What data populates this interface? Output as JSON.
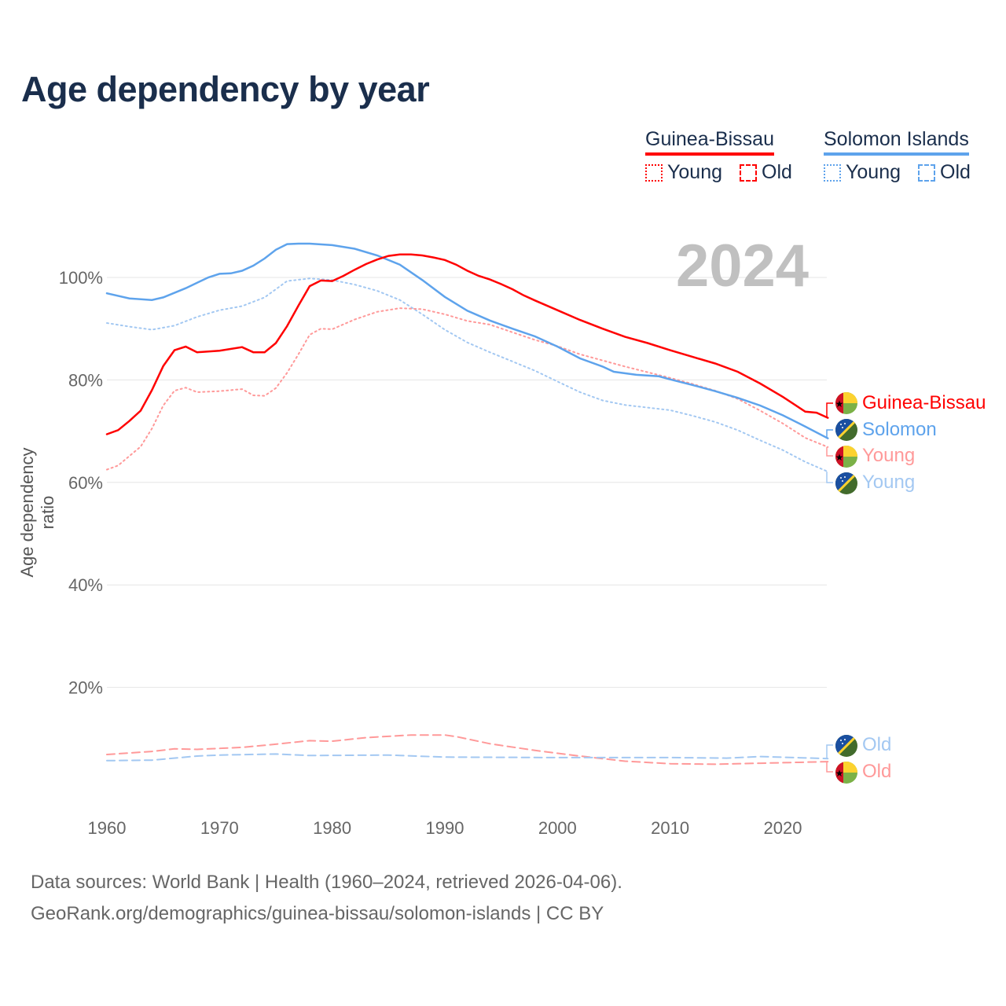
{
  "title": "Age dependency by year",
  "year_display": "2024",
  "legend": {
    "guinea_bissau": "Guinea-Bissau",
    "solomon": "Solomon Islands",
    "young": "Young",
    "old": "Old"
  },
  "end_labels": {
    "gb_total": "Guinea-Bissau",
    "sb_total": "Solomon",
    "gb_young": "Young",
    "sb_young": "Young",
    "sb_old": "Old",
    "gb_old": "Old"
  },
  "colors": {
    "gb": "#ff0000",
    "gb_light": "#ff9999",
    "sb": "#5ea3ec",
    "sb_light": "#a3c8f2"
  },
  "source": {
    "line1": "Data sources: World Bank | Health (1960–2024, retrieved 2026-04-06).",
    "line2": "GeoRank.org/demographics/guinea-bissau/solomon-islands | CC BY"
  },
  "chart_data": {
    "type": "line",
    "title": "Age dependency by year",
    "xlabel": "",
    "ylabel": "Age dependency ratio",
    "xlim": [
      1960,
      2024
    ],
    "ylim": [
      0,
      110
    ],
    "xticks": [
      1960,
      1970,
      1980,
      1990,
      2000,
      2010,
      2020
    ],
    "yticks": [
      {
        "v": 20,
        "label": "20%"
      },
      {
        "v": 40,
        "label": "40%"
      },
      {
        "v": 60,
        "label": "60%"
      },
      {
        "v": 80,
        "label": "80%"
      },
      {
        "v": 100,
        "label": "100%"
      }
    ],
    "grid": true,
    "series": [
      {
        "id": "gb_total",
        "name": "Guinea-Bissau",
        "style": "solid",
        "color": "#ff0000",
        "x": [
          1960,
          1961,
          1962,
          1963,
          1964,
          1965,
          1966,
          1967,
          1968,
          1970,
          1972,
          1973,
          1974,
          1975,
          1976,
          1977,
          1978,
          1979,
          1980,
          1981,
          1982,
          1983,
          1984,
          1985,
          1986,
          1987,
          1988,
          1989,
          1990,
          1991,
          1992,
          1993,
          1994,
          1995,
          1996,
          1997,
          1998,
          2000,
          2002,
          2004,
          2006,
          2008,
          2010,
          2012,
          2014,
          2016,
          2018,
          2020,
          2022,
          2023,
          2024
        ],
        "y": [
          69.4,
          70.2,
          72.0,
          74.0,
          78.0,
          82.7,
          85.8,
          86.5,
          85.4,
          85.7,
          86.4,
          85.4,
          85.4,
          87.2,
          90.5,
          94.5,
          98.3,
          99.4,
          99.3,
          100.3,
          101.5,
          102.6,
          103.5,
          104.2,
          104.5,
          104.5,
          104.3,
          103.9,
          103.4,
          102.5,
          101.3,
          100.3,
          99.6,
          98.7,
          97.7,
          96.5,
          95.5,
          93.6,
          91.7,
          90.0,
          88.4,
          87.2,
          85.8,
          84.5,
          83.2,
          81.6,
          79.3,
          76.7,
          73.8,
          73.6,
          72.6
        ]
      },
      {
        "id": "gb_young",
        "name": "Guinea-Bissau Young",
        "style": "dotted",
        "color": "#ff9999",
        "x": [
          1960,
          1961,
          1963,
          1964,
          1965,
          1966,
          1967,
          1968,
          1970,
          1972,
          1973,
          1974,
          1975,
          1976,
          1977,
          1978,
          1979,
          1980,
          1982,
          1984,
          1986,
          1988,
          1990,
          1992,
          1994,
          1996,
          1998,
          2000,
          2002,
          2004,
          2006,
          2008,
          2010,
          2012,
          2014,
          2016,
          2018,
          2020,
          2022,
          2024
        ],
        "y": [
          62.5,
          63.3,
          67.0,
          70.5,
          75.0,
          77.9,
          78.5,
          77.6,
          77.8,
          78.2,
          77.0,
          76.9,
          78.4,
          81.4,
          85.0,
          88.8,
          90.0,
          89.9,
          91.8,
          93.3,
          94.0,
          93.8,
          92.8,
          91.5,
          90.8,
          89.3,
          87.8,
          86.6,
          85.0,
          83.8,
          82.6,
          81.5,
          80.4,
          79.2,
          77.9,
          76.3,
          74.0,
          71.5,
          68.7,
          66.9
        ]
      },
      {
        "id": "gb_old",
        "name": "Guinea-Bissau Old",
        "style": "dashed",
        "color": "#ff9999",
        "x": [
          1960,
          1964,
          1966,
          1968,
          1972,
          1974,
          1978,
          1980,
          1983,
          1987,
          1990,
          1991,
          1994,
          1998,
          2002,
          2006,
          2010,
          2014,
          2018,
          2024
        ],
        "y": [
          6.9,
          7.5,
          8.0,
          7.9,
          8.3,
          8.7,
          9.6,
          9.5,
          10.2,
          10.7,
          10.7,
          10.4,
          9.0,
          7.7,
          6.6,
          5.6,
          5.1,
          5.0,
          5.2,
          5.5
        ]
      },
      {
        "id": "sb_total",
        "name": "Solomon",
        "style": "solid",
        "color": "#5ea3ec",
        "x": [
          1960,
          1962,
          1964,
          1965,
          1967,
          1969,
          1970,
          1971,
          1972,
          1973,
          1974,
          1975,
          1976,
          1977,
          1978,
          1980,
          1982,
          1984,
          1986,
          1988,
          1990,
          1992,
          1994,
          1996,
          1998,
          2000,
          2002,
          2004,
          2005,
          2007,
          2009,
          2010,
          2012,
          2014,
          2016,
          2018,
          2020,
          2022,
          2024
        ],
        "y": [
          96.9,
          95.9,
          95.6,
          96.1,
          97.9,
          100.0,
          100.7,
          100.8,
          101.3,
          102.3,
          103.7,
          105.4,
          106.5,
          106.6,
          106.6,
          106.3,
          105.6,
          104.3,
          102.5,
          99.5,
          96.2,
          93.5,
          91.6,
          90.0,
          88.5,
          86.5,
          84.2,
          82.6,
          81.6,
          81.0,
          80.7,
          80.1,
          79.0,
          77.8,
          76.5,
          75.0,
          73.1,
          70.9,
          68.6
        ]
      },
      {
        "id": "sb_young",
        "name": "Solomon Young",
        "style": "dotted",
        "color": "#a3c8f2",
        "x": [
          1960,
          1962,
          1964,
          1966,
          1968,
          1970,
          1972,
          1974,
          1976,
          1978,
          1980,
          1982,
          1984,
          1986,
          1988,
          1990,
          1992,
          1994,
          1996,
          1998,
          2000,
          2002,
          2004,
          2006,
          2008,
          2010,
          2012,
          2014,
          2016,
          2018,
          2020,
          2022,
          2024
        ],
        "y": [
          91.1,
          90.4,
          89.8,
          90.6,
          92.3,
          93.6,
          94.4,
          96.1,
          99.3,
          99.8,
          99.5,
          98.6,
          97.4,
          95.6,
          92.8,
          89.8,
          87.3,
          85.4,
          83.6,
          81.8,
          79.7,
          77.6,
          76.0,
          75.1,
          74.6,
          74.1,
          73.0,
          71.8,
          70.2,
          68.2,
          66.3,
          64.0,
          62.1
        ]
      },
      {
        "id": "sb_old",
        "name": "Solomon Old",
        "style": "dashed",
        "color": "#a3c8f2",
        "x": [
          1960,
          1964,
          1968,
          1970,
          1975,
          1978,
          1985,
          1990,
          2000,
          2010,
          2015,
          2018,
          2024
        ],
        "y": [
          5.7,
          5.8,
          6.6,
          6.8,
          7.0,
          6.7,
          6.8,
          6.4,
          6.3,
          6.3,
          6.2,
          6.5,
          6.1
        ]
      }
    ]
  }
}
